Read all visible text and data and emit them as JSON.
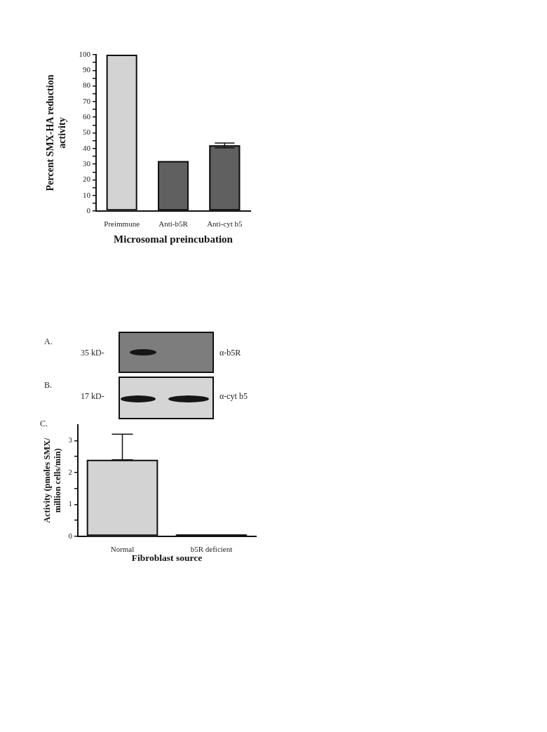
{
  "chart_data": [
    {
      "type": "bar",
      "categories": [
        "Preimmune",
        "Anti-b5R",
        "Anti-cyt b5"
      ],
      "values": [
        100,
        32,
        42
      ],
      "colors": [
        "#d3d3d3",
        "#606060",
        "#606060"
      ],
      "errors": [
        null,
        null,
        1.5
      ],
      "ylabel": "Percent SMX-HA reduction activity",
      "xlabel": "Microsomal preincubation",
      "ylim": [
        0,
        100
      ],
      "yticks": [
        0,
        {
          "value": 5,
          "label": null
        },
        10,
        {
          "value": 15,
          "label": null
        },
        20,
        {
          "value": 25,
          "label": null
        },
        30,
        {
          "value": 35,
          "label": null
        },
        40,
        {
          "value": 45,
          "label": null
        },
        50,
        {
          "value": 55,
          "label": null
        },
        60,
        {
          "value": 65,
          "label": null
        },
        70,
        {
          "value": 75,
          "label": null
        },
        80,
        {
          "value": 85,
          "label": null
        },
        90,
        {
          "value": 95,
          "label": null
        },
        100
      ]
    },
    {
      "type": "other",
      "annotations": [
        "A.",
        "35 kD-",
        "α-b5R",
        "B.",
        "17 kD-",
        "α-cyt b5"
      ]
    },
    {
      "type": "bar",
      "categories": [
        "Normal",
        "b5R deficient"
      ],
      "values": [
        2.4,
        0.06
      ],
      "colors": [
        "#d3d3d3",
        "#333333"
      ],
      "errors": [
        [
          2.4,
          3.2
        ],
        null
      ],
      "ylabel": "Activity (pmoles SMX/ million cells/min)",
      "xlabel": "Fibroblast source",
      "ylim": [
        0,
        3.5
      ],
      "yticks": [
        0,
        {
          "value": 0.5,
          "label": null
        },
        1,
        {
          "value": 1.5,
          "label": null
        },
        2,
        {
          "value": 2.5,
          "label": null
        },
        3
      ],
      "annotations": [
        "C."
      ]
    }
  ]
}
